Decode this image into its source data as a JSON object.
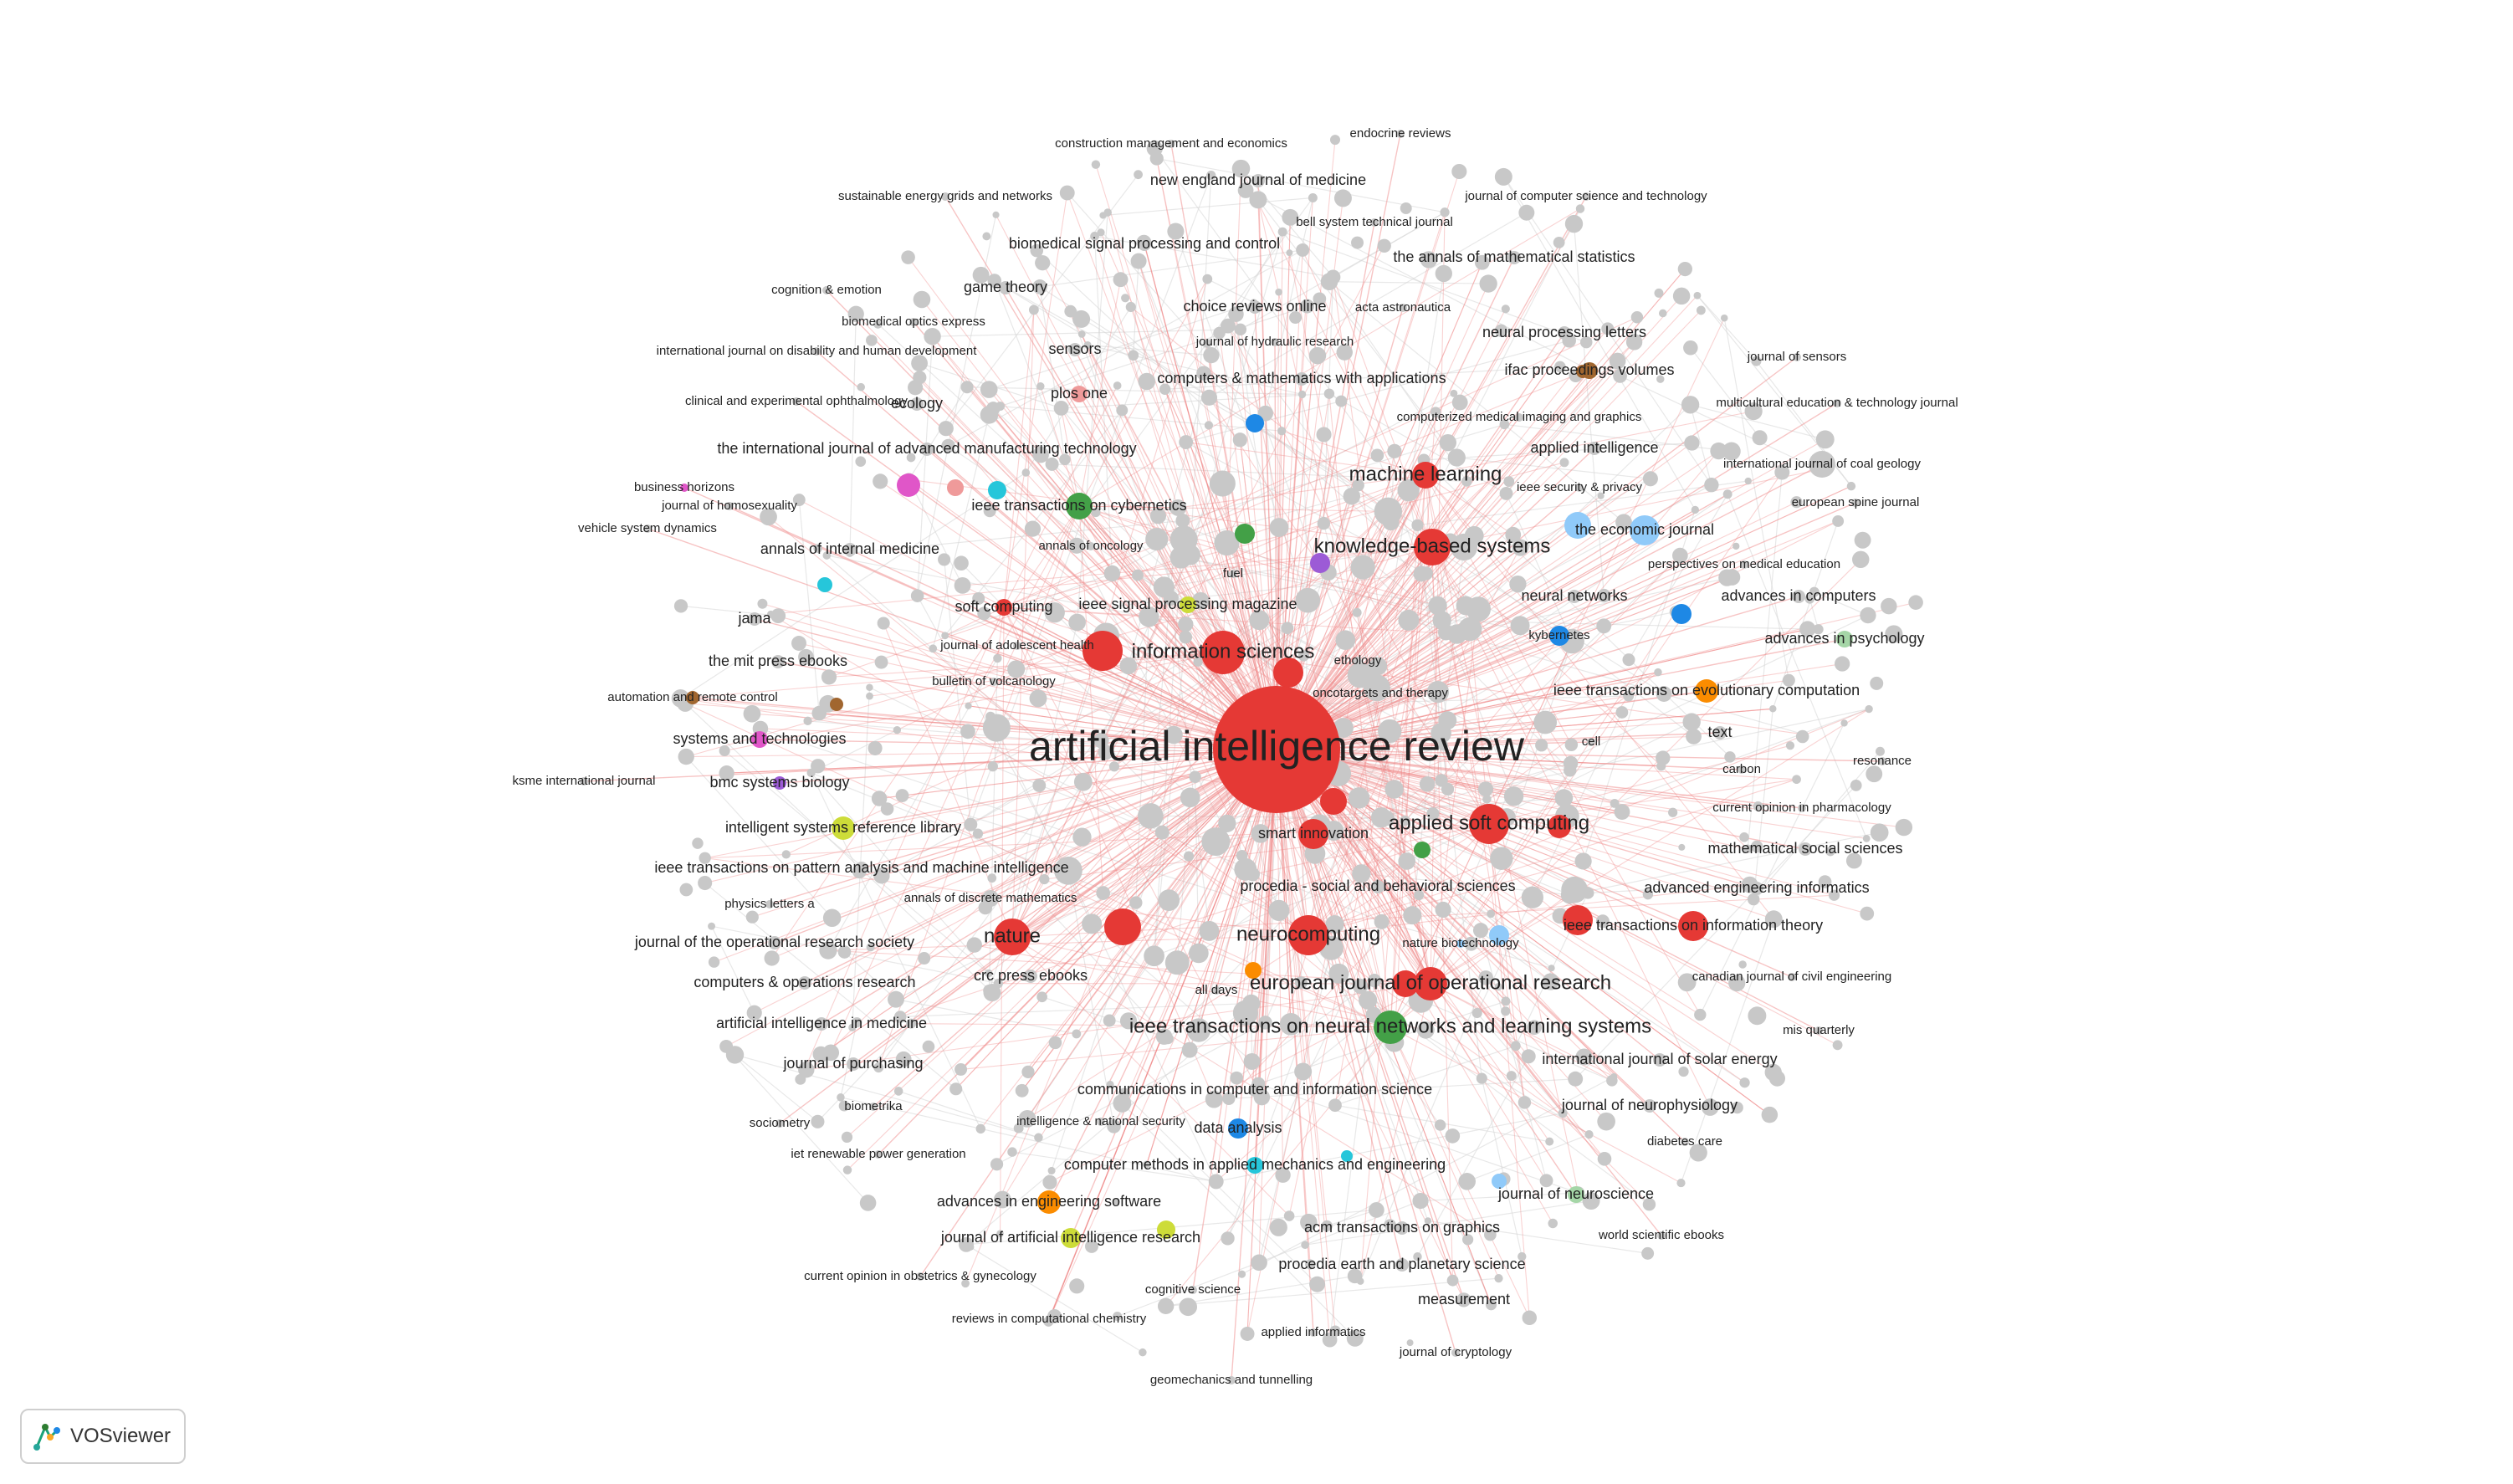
{
  "branding": {
    "app_name": "VOSviewer",
    "logo_icon": "vosviewer-logo-icon"
  },
  "palette": {
    "red": "#e53935",
    "green": "#43a047",
    "blue": "#1e88e5",
    "lightblue": "#90caf9",
    "purple": "#9c5bd6",
    "orange": "#fb8c00",
    "yellow": "#cddc39",
    "pink": "#e056c8",
    "cyan": "#26c6da",
    "brown": "#a1662f",
    "salmon": "#ef9a9a",
    "lightgreen": "#a5d6a7",
    "gray": "#c8c8c8",
    "edge_red": "#ef8a8a",
    "edge_gray": "#d6d6d6"
  },
  "nodes": [
    {
      "label": "artificial intelligence review",
      "weight": 100,
      "cluster": "red",
      "hub": true
    },
    {
      "label": "information sciences",
      "weight": 18,
      "cluster": "red"
    },
    {
      "label": "applied soft computing",
      "weight": 16,
      "cluster": "red"
    },
    {
      "label": "knowledge-based systems",
      "weight": 14,
      "cluster": "red"
    },
    {
      "label": "neurocomputing",
      "weight": 15,
      "cluster": "red"
    },
    {
      "label": "nature",
      "weight": 13,
      "cluster": "red"
    },
    {
      "label": "european journal of operational research",
      "weight": 12,
      "cluster": "red"
    },
    {
      "label": "machine learning",
      "weight": 10,
      "cluster": "red"
    },
    {
      "label": "ieee transactions on neural networks and learning systems",
      "weight": 11,
      "cluster": "green"
    },
    {
      "label": "ieee transactions on cybernetics",
      "weight": 9,
      "cluster": "green"
    },
    {
      "label": "soft computing",
      "weight": 9,
      "cluster": "red"
    },
    {
      "label": "smart innovation",
      "weight": 8,
      "cluster": "red"
    },
    {
      "label": "ieee transactions on pattern analysis and machine intelligence",
      "weight": 8,
      "cluster": "gray"
    },
    {
      "label": "intelligent systems reference library",
      "weight": 8,
      "cluster": "yellow"
    },
    {
      "label": "communications in computer and information science",
      "weight": 8,
      "cluster": "gray"
    },
    {
      "label": "ieee transactions on evolutionary computation",
      "weight": 8,
      "cluster": "orange"
    },
    {
      "label": "the economic journal",
      "weight": 8,
      "cluster": "lightblue"
    },
    {
      "label": "neural networks",
      "weight": 8,
      "cluster": "gray"
    },
    {
      "label": "ieee transactions on information theory",
      "weight": 8,
      "cluster": "red"
    },
    {
      "label": "computers & mathematics with applications",
      "weight": 7,
      "cluster": "gray"
    },
    {
      "label": "the international journal of advanced manufacturing technology",
      "weight": 7,
      "cluster": "gray"
    },
    {
      "label": "ieee signal processing magazine",
      "weight": 7,
      "cluster": "yellow"
    },
    {
      "label": "choice reviews online",
      "weight": 7,
      "cluster": "gray"
    },
    {
      "label": "procedia - social and behavioral sciences",
      "weight": 7,
      "cluster": "gray"
    },
    {
      "label": "advances in engineering software",
      "weight": 7,
      "cluster": "orange"
    },
    {
      "label": "crc press ebooks",
      "weight": 7,
      "cluster": "gray"
    },
    {
      "label": "plos one",
      "weight": 7,
      "cluster": "salmon"
    },
    {
      "label": "sensors",
      "weight": 7,
      "cluster": "gray"
    },
    {
      "label": "systems and technologies",
      "weight": 7,
      "cluster": "pink"
    },
    {
      "label": "the mit press ebooks",
      "weight": 7,
      "cluster": "gray"
    },
    {
      "label": "journal of the operational research society",
      "weight": 6,
      "cluster": "gray"
    },
    {
      "label": "computers & operations research",
      "weight": 6,
      "cluster": "gray"
    },
    {
      "label": "artificial intelligence in medicine",
      "weight": 6,
      "cluster": "gray"
    },
    {
      "label": "journal of purchasing",
      "weight": 6,
      "cluster": "gray"
    },
    {
      "label": "biomedical signal processing and control",
      "weight": 6,
      "cluster": "gray"
    },
    {
      "label": "new england journal of medicine",
      "weight": 6,
      "cluster": "gray"
    },
    {
      "label": "the annals of mathematical statistics",
      "weight": 6,
      "cluster": "gray"
    },
    {
      "label": "game theory",
      "weight": 6,
      "cluster": "gray"
    },
    {
      "label": "ecology",
      "weight": 6,
      "cluster": "gray"
    },
    {
      "label": "annals of internal medicine",
      "weight": 6,
      "cluster": "gray"
    },
    {
      "label": "jama",
      "weight": 6,
      "cluster": "gray"
    },
    {
      "label": "bmc systems biology",
      "weight": 6,
      "cluster": "purple"
    },
    {
      "label": "neural processing letters",
      "weight": 6,
      "cluster": "gray"
    },
    {
      "label": "ifac proceedings volumes",
      "weight": 6,
      "cluster": "brown"
    },
    {
      "label": "applied intelligence",
      "weight": 6,
      "cluster": "gray"
    },
    {
      "label": "advances in computers",
      "weight": 6,
      "cluster": "gray"
    },
    {
      "label": "advances in psychology",
      "weight": 6,
      "cluster": "lightgreen"
    },
    {
      "label": "text",
      "weight": 6,
      "cluster": "gray"
    },
    {
      "label": "mathematical social sciences",
      "weight": 6,
      "cluster": "gray"
    },
    {
      "label": "advanced engineering informatics",
      "weight": 6,
      "cluster": "gray"
    },
    {
      "label": "international journal of solar energy",
      "weight": 6,
      "cluster": "gray"
    },
    {
      "label": "journal of neurophysiology",
      "weight": 6,
      "cluster": "gray"
    },
    {
      "label": "journal of neuroscience",
      "weight": 6,
      "cluster": "lightgreen"
    },
    {
      "label": "measurement",
      "weight": 6,
      "cluster": "gray"
    },
    {
      "label": "procedia earth and planetary science",
      "weight": 6,
      "cluster": "gray"
    },
    {
      "label": "acm transactions on graphics",
      "weight": 6,
      "cluster": "gray"
    },
    {
      "label": "journal of artificial intelligence research",
      "weight": 6,
      "cluster": "yellow"
    },
    {
      "label": "computer methods in applied mechanics and engineering",
      "weight": 6,
      "cluster": "cyan"
    },
    {
      "label": "data analysis",
      "weight": 6,
      "cluster": "blue"
    },
    {
      "label": "construction management and economics",
      "weight": 4,
      "cluster": "gray"
    },
    {
      "label": "endocrine reviews",
      "weight": 4,
      "cluster": "gray"
    },
    {
      "label": "sustainable energy grids and networks",
      "weight": 4,
      "cluster": "gray"
    },
    {
      "label": "journal of computer science and technology",
      "weight": 4,
      "cluster": "gray"
    },
    {
      "label": "bell system technical journal",
      "weight": 4,
      "cluster": "gray"
    },
    {
      "label": "cognition & emotion",
      "weight": 4,
      "cluster": "gray"
    },
    {
      "label": "biomedical optics express",
      "weight": 4,
      "cluster": "gray"
    },
    {
      "label": "acta astronautica",
      "weight": 4,
      "cluster": "gray"
    },
    {
      "label": "journal of hydraulic research",
      "weight": 4,
      "cluster": "gray"
    },
    {
      "label": "international journal on disability and human development",
      "weight": 4,
      "cluster": "gray"
    },
    {
      "label": "journal of sensors",
      "weight": 4,
      "cluster": "gray"
    },
    {
      "label": "clinical and experimental ophthalmology",
      "weight": 4,
      "cluster": "gray"
    },
    {
      "label": "computerized medical imaging and graphics",
      "weight": 4,
      "cluster": "gray"
    },
    {
      "label": "multicultural education & technology journal",
      "weight": 4,
      "cluster": "gray"
    },
    {
      "label": "international journal of coal geology",
      "weight": 4,
      "cluster": "gray"
    },
    {
      "label": "business horizons",
      "weight": 4,
      "cluster": "pink"
    },
    {
      "label": "ieee security & privacy",
      "weight": 4,
      "cluster": "gray"
    },
    {
      "label": "journal of homosexuality",
      "weight": 4,
      "cluster": "gray"
    },
    {
      "label": "european spine journal",
      "weight": 4,
      "cluster": "gray"
    },
    {
      "label": "vehicle system dynamics",
      "weight": 4,
      "cluster": "gray"
    },
    {
      "label": "annals of oncology",
      "weight": 4,
      "cluster": "gray"
    },
    {
      "label": "perspectives on medical education",
      "weight": 4,
      "cluster": "gray"
    },
    {
      "label": "fuel",
      "weight": 4,
      "cluster": "gray"
    },
    {
      "label": "kybernetes",
      "weight": 4,
      "cluster": "blue"
    },
    {
      "label": "journal of adolescent health",
      "weight": 4,
      "cluster": "gray"
    },
    {
      "label": "ethology",
      "weight": 4,
      "cluster": "gray"
    },
    {
      "label": "automation and remote control",
      "weight": 4,
      "cluster": "brown"
    },
    {
      "label": "bulletin of volcanology",
      "weight": 4,
      "cluster": "gray"
    },
    {
      "label": "oncotargets and therapy",
      "weight": 4,
      "cluster": "gray"
    },
    {
      "label": "cell",
      "weight": 4,
      "cluster": "gray"
    },
    {
      "label": "carbon",
      "weight": 4,
      "cluster": "gray"
    },
    {
      "label": "resonance",
      "weight": 4,
      "cluster": "gray"
    },
    {
      "label": "ksme international journal",
      "weight": 4,
      "cluster": "gray"
    },
    {
      "label": "current opinion in pharmacology",
      "weight": 4,
      "cluster": "gray"
    },
    {
      "label": "physics letters a",
      "weight": 4,
      "cluster": "gray"
    },
    {
      "label": "annals of discrete mathematics",
      "weight": 4,
      "cluster": "gray"
    },
    {
      "label": "nature biotechnology",
      "weight": 4,
      "cluster": "lightblue"
    },
    {
      "label": "all days",
      "weight": 4,
      "cluster": "gray"
    },
    {
      "label": "canadian journal of civil engineering",
      "weight": 4,
      "cluster": "gray"
    },
    {
      "label": "mis quarterly",
      "weight": 4,
      "cluster": "gray"
    },
    {
      "label": "biometrika",
      "weight": 4,
      "cluster": "gray"
    },
    {
      "label": "sociometry",
      "weight": 4,
      "cluster": "gray"
    },
    {
      "label": "intelligence & national security",
      "weight": 4,
      "cluster": "gray"
    },
    {
      "label": "iet renewable power generation",
      "weight": 4,
      "cluster": "gray"
    },
    {
      "label": "diabetes care",
      "weight": 4,
      "cluster": "gray"
    },
    {
      "label": "world scientific ebooks",
      "weight": 4,
      "cluster": "gray"
    },
    {
      "label": "current opinion in obstetrics & gynecology",
      "weight": 4,
      "cluster": "gray"
    },
    {
      "label": "cognitive science",
      "weight": 4,
      "cluster": "gray"
    },
    {
      "label": "reviews in computational chemistry",
      "weight": 4,
      "cluster": "gray"
    },
    {
      "label": "applied informatics",
      "weight": 4,
      "cluster": "gray"
    },
    {
      "label": "journal of cryptology",
      "weight": 4,
      "cluster": "gray"
    },
    {
      "label": "geomechanics and tunnelling",
      "weight": 4,
      "cluster": "gray"
    }
  ]
}
